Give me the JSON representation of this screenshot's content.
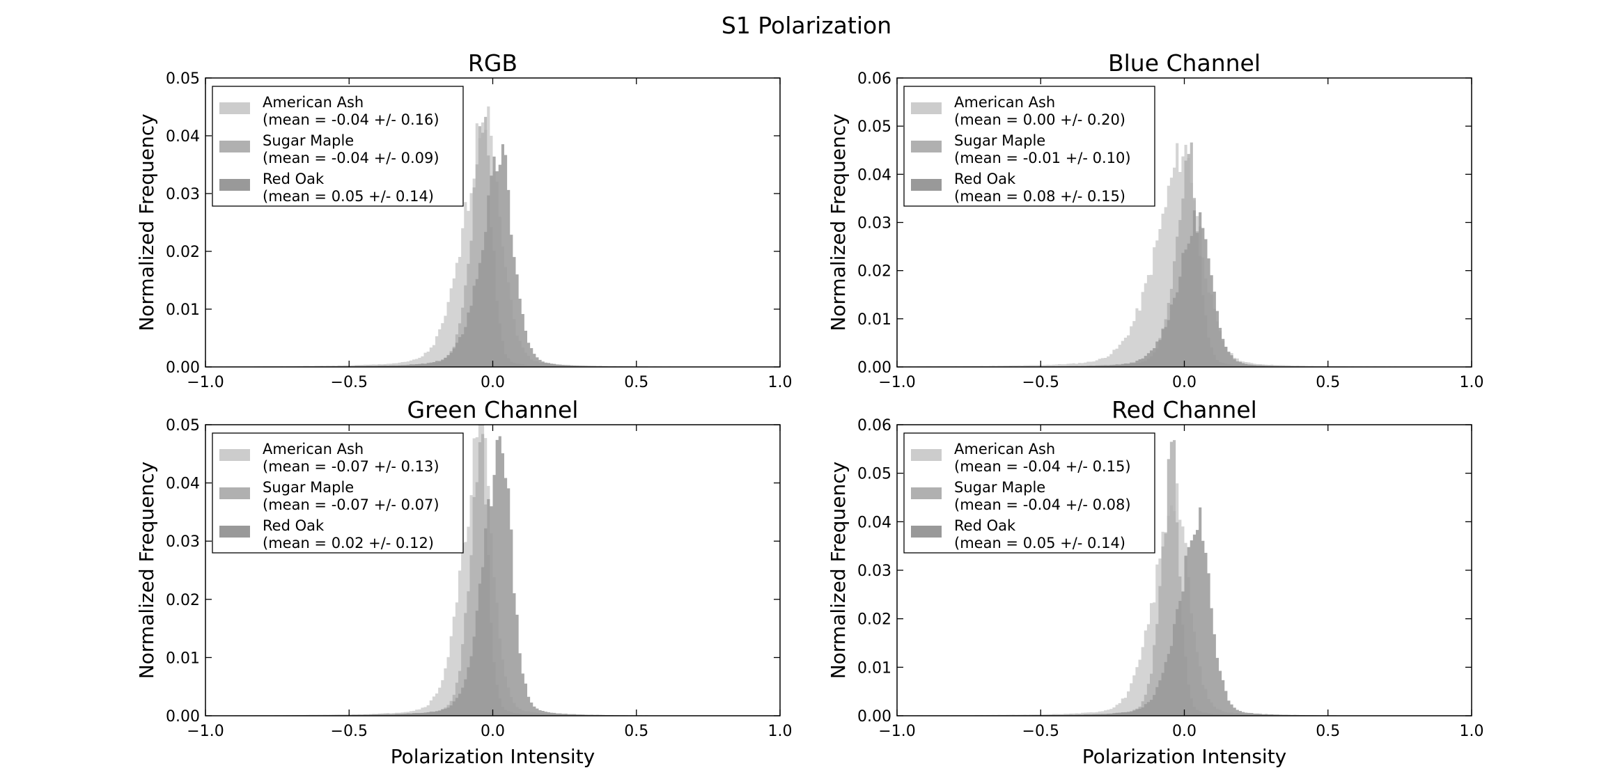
{
  "figure": {
    "title": "S1 Polarization"
  },
  "chart_data": [
    {
      "type": "histogram",
      "title": "RGB",
      "xlabel": "",
      "ylabel": "Normalized Frequency",
      "xlim": [
        -1.0,
        1.0
      ],
      "ylim": [
        0,
        0.05
      ],
      "xticks": [
        "−1.0",
        "−0.5",
        "0.0",
        "0.5",
        "1.0"
      ],
      "yticks": [
        "0.00",
        "0.01",
        "0.02",
        "0.03",
        "0.04",
        "0.05"
      ],
      "legend_position": "upper-left",
      "series": [
        {
          "name": "American Ash",
          "label": "(mean = -0.04 +/- 0.16)",
          "mean": -0.04,
          "std": 0.16,
          "color": "#cccccc",
          "peak": 0.045,
          "peak_x": -0.02
        },
        {
          "name": "Sugar Maple",
          "label": "(mean = -0.04 +/- 0.09)",
          "mean": -0.04,
          "std": 0.09,
          "color": "#b0b0b0",
          "peak": 0.043,
          "peak_x": -0.03
        },
        {
          "name": "Red Oak",
          "label": "(mean = 0.05 +/- 0.14)",
          "mean": 0.05,
          "std": 0.14,
          "color": "#999999",
          "peak": 0.037,
          "peak_x": 0.03
        }
      ]
    },
    {
      "type": "histogram",
      "title": "Blue Channel",
      "xlabel": "",
      "ylabel": "Normalized Frequency",
      "xlim": [
        -1.0,
        1.0
      ],
      "ylim": [
        0,
        0.06
      ],
      "xticks": [
        "−1.0",
        "−0.5",
        "0.0",
        "0.5",
        "1.0"
      ],
      "yticks": [
        "0.00",
        "0.01",
        "0.02",
        "0.03",
        "0.04",
        "0.05",
        "0.06"
      ],
      "legend_position": "upper-left",
      "series": [
        {
          "name": "American Ash",
          "label": "(mean = 0.00 +/- 0.20)",
          "mean": 0.0,
          "std": 0.2,
          "color": "#cccccc",
          "peak": 0.045,
          "peak_x": 0.0
        },
        {
          "name": "Sugar Maple",
          "label": "(mean = -0.01 +/- 0.10)",
          "mean": -0.01,
          "std": 0.1,
          "color": "#b0b0b0",
          "peak": 0.045,
          "peak_x": 0.02
        },
        {
          "name": "Red Oak",
          "label": "(mean = 0.08 +/- 0.15)",
          "mean": 0.08,
          "std": 0.15,
          "color": "#999999",
          "peak": 0.031,
          "peak_x": 0.05
        }
      ]
    },
    {
      "type": "histogram",
      "title": "Green Channel",
      "xlabel": "Polarization Intensity",
      "ylabel": "Normalized Frequency",
      "xlim": [
        -1.0,
        1.0
      ],
      "ylim": [
        0,
        0.05
      ],
      "xticks": [
        "−1.0",
        "−0.5",
        "0.0",
        "0.5",
        "1.0"
      ],
      "yticks": [
        "0.00",
        "0.01",
        "0.02",
        "0.03",
        "0.04",
        "0.05"
      ],
      "legend_position": "upper-left",
      "series": [
        {
          "name": "American Ash",
          "label": "(mean = -0.07 +/- 0.13)",
          "mean": -0.07,
          "std": 0.13,
          "color": "#cccccc",
          "peak": 0.05,
          "peak_x": -0.04
        },
        {
          "name": "Sugar Maple",
          "label": "(mean = -0.07 +/- 0.07)",
          "mean": -0.07,
          "std": 0.07,
          "color": "#b0b0b0",
          "peak": 0.048,
          "peak_x": -0.04
        },
        {
          "name": "Red Oak",
          "label": "(mean = 0.02 +/- 0.12)",
          "mean": 0.02,
          "std": 0.12,
          "color": "#999999",
          "peak": 0.05,
          "peak_x": 0.03
        }
      ]
    },
    {
      "type": "histogram",
      "title": "Red Channel",
      "xlabel": "Polarization Intensity",
      "ylabel": "Normalized Frequency",
      "xlim": [
        -1.0,
        1.0
      ],
      "ylim": [
        0,
        0.06
      ],
      "xticks": [
        "−1.0",
        "−0.5",
        "0.0",
        "0.5",
        "1.0"
      ],
      "yticks": [
        "0.00",
        "0.01",
        "0.02",
        "0.03",
        "0.04",
        "0.05",
        "0.06"
      ],
      "legend_position": "upper-left",
      "series": [
        {
          "name": "American Ash",
          "label": "(mean = -0.04 +/- 0.15)",
          "mean": -0.04,
          "std": 0.15,
          "color": "#cccccc",
          "peak": 0.047,
          "peak_x": -0.03
        },
        {
          "name": "Sugar Maple",
          "label": "(mean = -0.04 +/- 0.08)",
          "mean": -0.04,
          "std": 0.08,
          "color": "#b0b0b0",
          "peak": 0.054,
          "peak_x": -0.04
        },
        {
          "name": "Red Oak",
          "label": "(mean = 0.05 +/- 0.14)",
          "mean": 0.05,
          "std": 0.14,
          "color": "#999999",
          "peak": 0.041,
          "peak_x": 0.05
        }
      ]
    }
  ]
}
